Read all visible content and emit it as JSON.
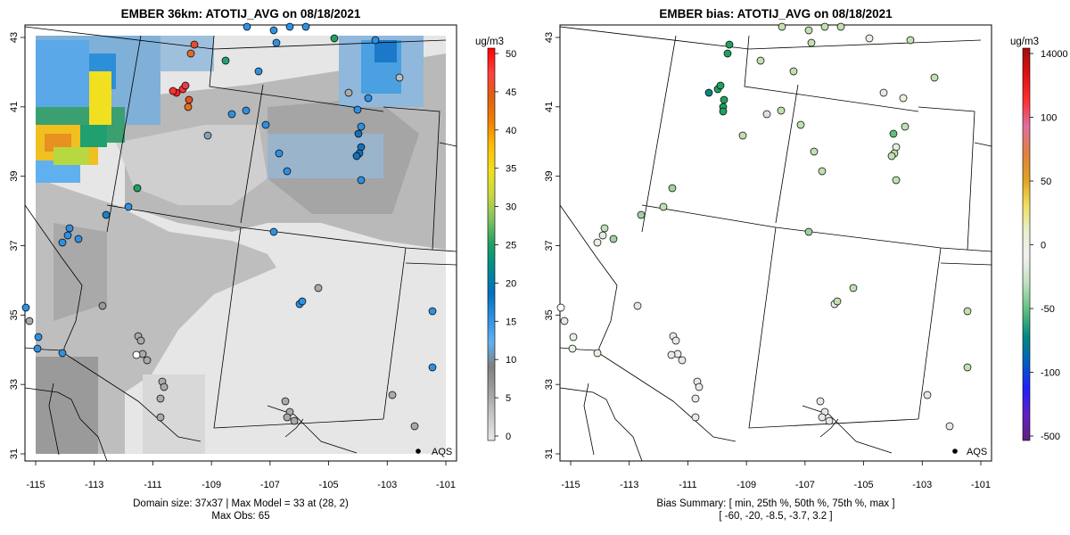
{
  "left_map": {
    "title": "EMBER 36km: ATOTIJ_AVG on 08/18/2021",
    "x_ticks": [
      "-115",
      "-113",
      "-111",
      "-109",
      "-107",
      "-105",
      "-103",
      "-101"
    ],
    "y_ticks": [
      "43",
      "41",
      "39",
      "37",
      "35",
      "33",
      "31"
    ],
    "colorbar": {
      "unit": "ug/m3",
      "ticks": [
        "50",
        "45",
        "40",
        "35",
        "30",
        "25",
        "20",
        "15",
        "10",
        "5",
        "0"
      ],
      "stops": [
        "#ff0000",
        "#ff4040",
        "#e06010",
        "#f08000",
        "#ffc000",
        "#f0e020",
        "#c8d840",
        "#80c060",
        "#20a060",
        "#008a90",
        "#0070c0",
        "#3090e0",
        "#60b0f0",
        "#808080",
        "#a0a0a0",
        "#c8c8c8",
        "#e8e8e8"
      ]
    },
    "legend_label": "AQS",
    "notes": [
      "Domain size: 37x37 | Max Model = 33 at (28, 2)",
      "Max Obs: 65"
    ]
  },
  "right_map": {
    "title": "EMBER bias: ATOTIJ_AVG on 08/18/2021",
    "x_ticks": [
      "-115",
      "-113",
      "-111",
      "-109",
      "-107",
      "-105",
      "-103",
      "-101"
    ],
    "y_ticks": [
      "43",
      "41",
      "39",
      "37",
      "35",
      "33",
      "31"
    ],
    "colorbar": {
      "unit": "ug/m3",
      "ticks": [
        "14000",
        "100",
        "50",
        "0",
        "-50",
        "-100",
        "-500"
      ],
      "stops": [
        "#a01010",
        "#e01010",
        "#ff3030",
        "#e070a0",
        "#e08040",
        "#e0a020",
        "#f0e060",
        "#e8f0d0",
        "#f0f0f0",
        "#c0e0c0",
        "#60c080",
        "#008a80",
        "#0060c0",
        "#2020ff",
        "#6020c0",
        "#602080"
      ]
    },
    "legend_label": "AQS",
    "notes": [
      "Bias Summary: [ min, 25th %, 50th %, 75th %, max ]",
      "[ -60,   -20,   -8.5,   -3.7,   3.2 ]"
    ]
  },
  "colors": {
    "grid_light": "#e6e6e6",
    "grid_mid": "#c8c8c8",
    "grid_dark": "#a8a8a8"
  }
}
